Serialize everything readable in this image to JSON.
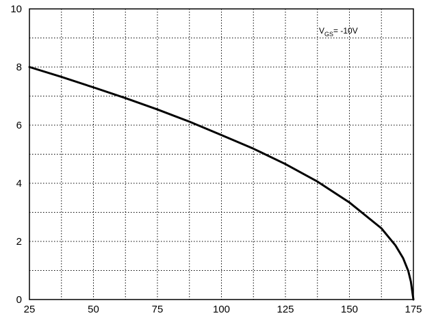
{
  "chart_data": {
    "type": "line",
    "title": "",
    "xlabel": "",
    "ylabel": "",
    "xlim": [
      25,
      175
    ],
    "ylim": [
      0,
      10
    ],
    "grid": true,
    "grid_style": "dotted",
    "x_ticks": [
      25,
      50,
      75,
      100,
      125,
      150,
      175
    ],
    "y_ticks": [
      0,
      2,
      4,
      6,
      8,
      10
    ],
    "x_minor_ticks": [
      25,
      37.5,
      50,
      62.5,
      75,
      87.5,
      100,
      112.5,
      125,
      137.5,
      150,
      162.5,
      175
    ],
    "y_minor_ticks": [
      0,
      1,
      2,
      3,
      4,
      5,
      6,
      7,
      8,
      9,
      10
    ],
    "annotation": {
      "main": "V",
      "sub": "GS",
      "rest": "= -10V"
    },
    "line_color": "#000000",
    "series": [
      {
        "x": [
          25,
          37.5,
          50,
          62.5,
          75,
          87.5,
          100,
          112.5,
          125,
          137.5,
          150,
          162.5,
          168,
          171,
          173,
          174,
          175
        ],
        "y": [
          8.0,
          7.66,
          7.3,
          6.93,
          6.54,
          6.12,
          5.66,
          5.19,
          4.66,
          4.06,
          3.34,
          2.45,
          1.86,
          1.42,
          0.98,
          0.62,
          0.0
        ]
      }
    ]
  }
}
